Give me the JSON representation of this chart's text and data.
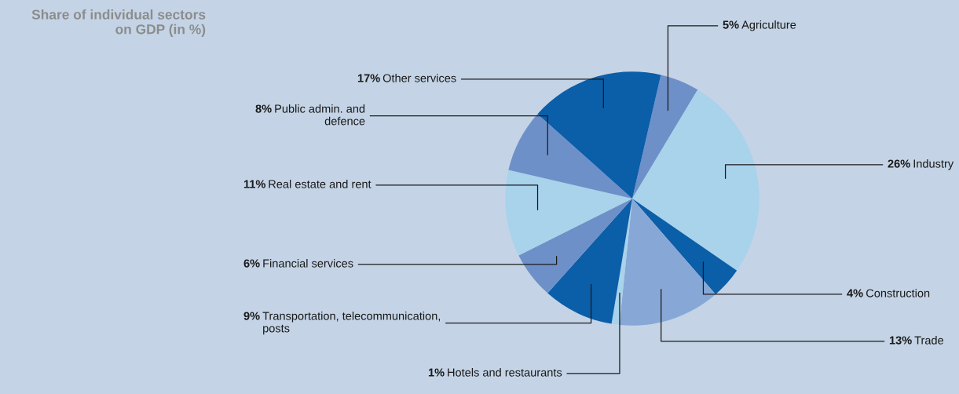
{
  "chart_data": {
    "type": "pie",
    "title": "Share of individual sectors\non GDP (in %)",
    "categories": [
      "Agriculture",
      "Industry",
      "Construction",
      "Trade",
      "Hotels and restaurants",
      "Transportation, telecommunication,\nposts",
      "Financial services",
      "Real estate and rent",
      "Public admin. and\ndefence",
      "Other services"
    ],
    "values": [
      5,
      26,
      4,
      13,
      1,
      9,
      6,
      11,
      8,
      17
    ],
    "value_labels": [
      "5%",
      "26%",
      "4%",
      "13%",
      "1%",
      "9%",
      "6%",
      "11%",
      "8%",
      "17%"
    ],
    "colors": [
      "#6e90c8",
      "#a9d2eb",
      "#0b5ea8",
      "#87a8d6",
      "#a9d2eb",
      "#0b5ea8",
      "#6e90c8",
      "#a9d2eb",
      "#6e90c8",
      "#0b5ea8"
    ]
  }
}
